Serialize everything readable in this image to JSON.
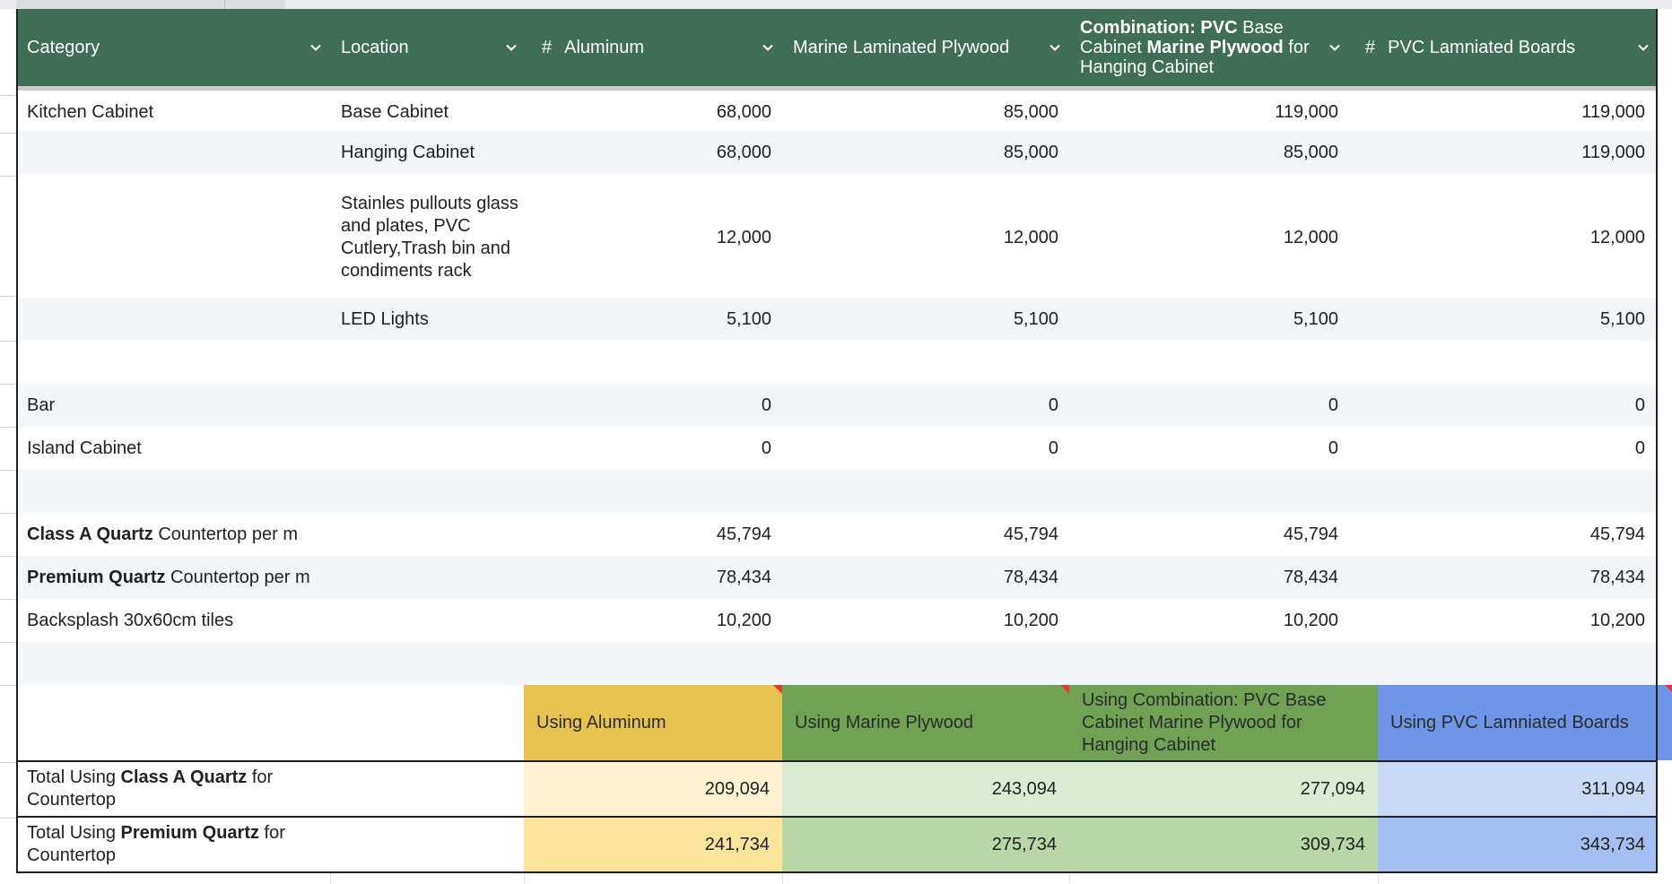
{
  "colors": {
    "header_green": "#3f6e57",
    "aluminum_head": "#e8c24f",
    "aluminum_light": "#fdf1cf",
    "aluminum_mid": "#fce49d",
    "marine_head": "#6fa252",
    "marine_light": "#dcebd3",
    "marine_mid": "#b9d7a6",
    "pvc_head": "#6d97e6",
    "pvc_light": "#c9d9f6",
    "pvc_mid": "#a4c0f2"
  },
  "header": {
    "category": "Category",
    "location": "Location",
    "aluminum": "Aluminum",
    "marine": "Marine Laminated Plywood",
    "combo_b1": "Combination: PVC",
    "combo_t1": " Base Cabinet ",
    "combo_b2": "Marine Plywood",
    "combo_t2": " for Hanging Cabinet",
    "pvc": "PVC Lamniated Boards",
    "hash_symbol": "#"
  },
  "rows": [
    {
      "category": "Kitchen Cabinet",
      "location": "Base Cabinet",
      "aluminum": "68,000",
      "marine": "85,000",
      "combo": "119,000",
      "pvc": "119,000"
    },
    {
      "category": "",
      "location": "Hanging Cabinet",
      "aluminum": "68,000",
      "marine": "85,000",
      "combo": "85,000",
      "pvc": "119,000"
    },
    {
      "category": "",
      "location": "Stainles pullouts glass and plates, PVC Cutlery,Trash bin and condiments rack",
      "aluminum": "12,000",
      "marine": "12,000",
      "combo": "12,000",
      "pvc": "12,000"
    },
    {
      "category": "",
      "location": "LED Lights",
      "aluminum": "5,100",
      "marine": "5,100",
      "combo": "5,100",
      "pvc": "5,100"
    },
    {
      "category": "Bar",
      "location": "",
      "aluminum": "0",
      "marine": "0",
      "combo": "0",
      "pvc": "0"
    },
    {
      "category": "Island Cabinet",
      "location": "",
      "aluminum": "0",
      "marine": "0",
      "combo": "0",
      "pvc": "0"
    },
    {
      "category_bold": "Class A Quartz",
      "category_rest": " Countertop per m",
      "aluminum": "45,794",
      "marine": "45,794",
      "combo": "45,794",
      "pvc": "45,794"
    },
    {
      "category_bold": "Premium Quartz",
      "category_rest": " Countertop per m",
      "aluminum": "78,434",
      "marine": "78,434",
      "combo": "78,434",
      "pvc": "78,434"
    },
    {
      "category": "Backsplash 30x60cm tiles",
      "location": "",
      "aluminum": "10,200",
      "marine": "10,200",
      "combo": "10,200",
      "pvc": "10,200"
    }
  ],
  "summary": {
    "headers": {
      "aluminum": "Using Aluminum",
      "marine": "Using Marine Plywood",
      "combo": "Using Combination: PVC Base Cabinet Marine Plywood for Hanging Cabinet",
      "pvc": "Using PVC Lamniated Boards"
    },
    "row1": {
      "pre": "Total Using ",
      "bold": "Class A Quartz",
      "post": " for Countertop",
      "aluminum": "209,094",
      "marine": "243,094",
      "combo": "277,094",
      "pvc": "311,094"
    },
    "row2": {
      "pre": "Total Using ",
      "bold": "Premium Quartz",
      "post": " for Countertop",
      "aluminum": "241,734",
      "marine": "275,734",
      "combo": "309,734",
      "pvc": "343,734"
    }
  }
}
